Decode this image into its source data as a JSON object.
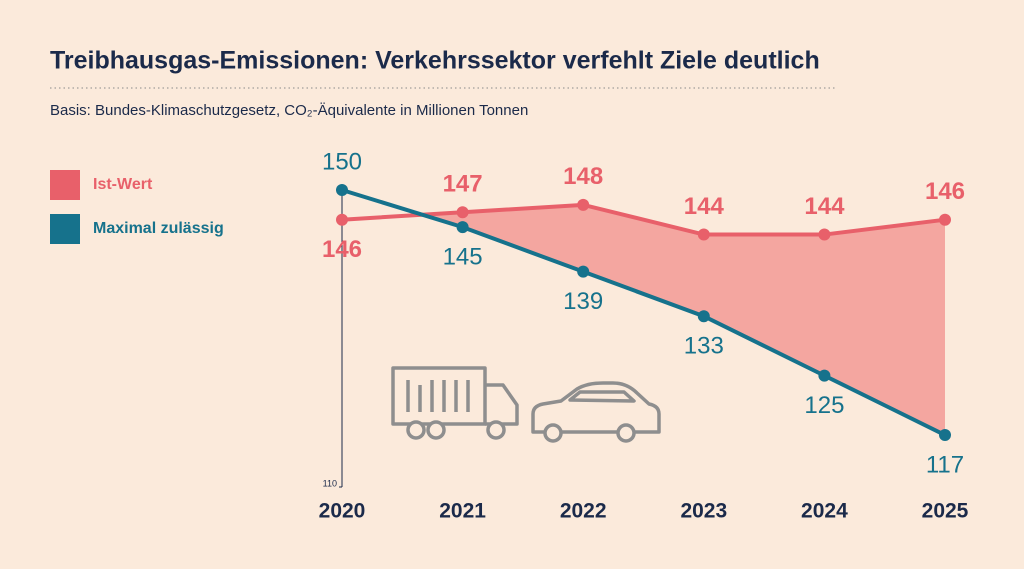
{
  "chart_data": {
    "type": "line",
    "title": "Treibhausgas-Emissionen: Verkehrssektor verfehlt Ziele deutlich",
    "subtitle": "Basis: Bundes-Klimaschutzgesetz, CO₂-Äquivalente in Millionen Tonnen",
    "categories": [
      "2020",
      "2021",
      "2022",
      "2023",
      "2024",
      "2025"
    ],
    "series": [
      {
        "name": "Ist-Wert",
        "color": "#e8606a",
        "values": [
          146,
          147,
          148,
          144,
          144,
          146
        ]
      },
      {
        "name": "Maximal zulässig",
        "color": "#16728c",
        "values": [
          150,
          145,
          139,
          133,
          125,
          117
        ]
      }
    ],
    "fill_between_color": "#f4a6a0",
    "ylim": [
      110,
      150
    ],
    "yticks": [
      110
    ],
    "legend": "left"
  }
}
